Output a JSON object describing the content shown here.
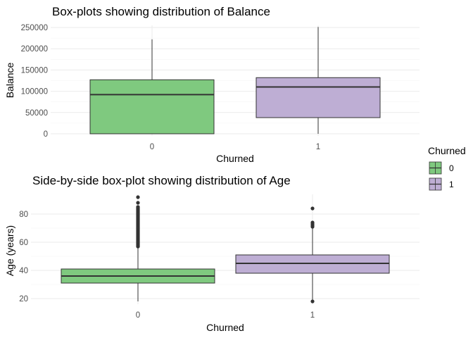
{
  "chart_data": [
    {
      "type": "boxplot",
      "title": "Box-plots showing distribution of Balance",
      "xlabel": "Churned",
      "ylabel": "Balance",
      "categories": [
        "0",
        "1"
      ],
      "ylim": [
        -5000,
        255000
      ],
      "yticks": [
        0,
        50000,
        100000,
        150000,
        200000,
        250000
      ],
      "ytick_labels": [
        "0",
        "50000",
        "100000",
        "150000",
        "200000",
        "250000"
      ],
      "boxes": [
        {
          "category": "0",
          "min": 0,
          "q1": 0,
          "median": 92000,
          "q3": 127000,
          "max": 222000,
          "outliers": [],
          "fill": "#7fc97f"
        },
        {
          "category": "1",
          "min": 0,
          "q1": 38000,
          "median": 110000,
          "q3": 132000,
          "max": 251000,
          "outliers": [],
          "fill": "#beaed4"
        }
      ]
    },
    {
      "type": "boxplot",
      "title": "Side-by-side box-plot showing distribution of Age",
      "xlabel": "Churned",
      "ylabel": "Age (years)",
      "categories": [
        "0",
        "1"
      ],
      "ylim": [
        16,
        94
      ],
      "yticks": [
        20,
        40,
        60,
        80
      ],
      "ytick_labels": [
        "20",
        "40",
        "60",
        "80"
      ],
      "boxes": [
        {
          "category": "0",
          "min": 18,
          "q1": 31,
          "median": 36,
          "q3": 41,
          "max": 56,
          "outliers": [
            57,
            58,
            59,
            60,
            61,
            62,
            63,
            64,
            65,
            66,
            67,
            68,
            69,
            70,
            71,
            72,
            73,
            74,
            75,
            76,
            77,
            78,
            79,
            80,
            81,
            82,
            83,
            84,
            85,
            88,
            92
          ],
          "fill": "#7fc97f"
        },
        {
          "category": "1",
          "min": 19,
          "q1": 38,
          "median": 45,
          "q3": 51,
          "max": 70,
          "outliers": [
            18,
            71,
            72,
            73,
            74,
            84
          ],
          "fill": "#beaed4"
        }
      ]
    }
  ],
  "legend": {
    "title": "Churned",
    "items": [
      {
        "label": "0",
        "color": "#7fc97f"
      },
      {
        "label": "1",
        "color": "#beaed4"
      }
    ]
  }
}
